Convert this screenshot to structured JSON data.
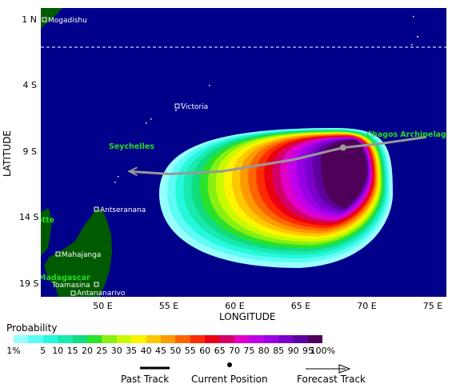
{
  "axes": {
    "lat_title": "LATITUDE",
    "lon_title": "LONGITUDE",
    "lat_ticks": [
      {
        "label": "1 N",
        "lat": 1
      },
      {
        "label": "4 S",
        "lat": -4
      },
      {
        "label": "9 S",
        "lat": -9
      },
      {
        "label": "14 S",
        "lat": -14
      },
      {
        "label": "19 S",
        "lat": -19
      }
    ],
    "lon_ticks": [
      {
        "label": "50 E",
        "lon": 50
      },
      {
        "label": "55 E",
        "lon": 55
      },
      {
        "label": "60 E",
        "lon": 60
      },
      {
        "label": "65 E",
        "lon": 65
      },
      {
        "label": "70 E",
        "lon": 70
      },
      {
        "label": "75 E",
        "lon": 75
      }
    ]
  },
  "map": {
    "ocean_color": "#00008a",
    "land_color": "#005a00",
    "equator_dashed": true,
    "places": [
      {
        "name": "Mogadishu",
        "type": "city"
      },
      {
        "name": "Victoria",
        "type": "city"
      },
      {
        "name": "Antseranana",
        "type": "city"
      },
      {
        "name": "Mahajanga",
        "type": "city"
      },
      {
        "name": "Toamasina",
        "type": "city"
      },
      {
        "name": "Antananarivo",
        "type": "city"
      },
      {
        "name": "Seychelles",
        "type": "region"
      },
      {
        "name": "Chagos Archipelago",
        "type": "region"
      },
      {
        "name": "Mayotte",
        "type": "region"
      },
      {
        "name": "Madagascar",
        "type": "region"
      }
    ]
  },
  "probability": {
    "title": "Probability",
    "bins": [
      {
        "label": "1%",
        "color": "#98ffff"
      },
      {
        "label": "5",
        "color": "#5cfcf4"
      },
      {
        "label": "10",
        "color": "#26f8dc"
      },
      {
        "label": "15",
        "color": "#18eab0"
      },
      {
        "label": "20",
        "color": "#10dc80"
      },
      {
        "label": "25",
        "color": "#2ae22a"
      },
      {
        "label": "30",
        "color": "#88f012"
      },
      {
        "label": "35",
        "color": "#cafa00"
      },
      {
        "label": "40",
        "color": "#fcf400"
      },
      {
        "label": "45",
        "color": "#fcc800"
      },
      {
        "label": "50",
        "color": "#fc9a00"
      },
      {
        "label": "55",
        "color": "#fc6600"
      },
      {
        "label": "60",
        "color": "#fc2c00"
      },
      {
        "label": "65",
        "color": "#ea0012"
      },
      {
        "label": "70",
        "color": "#d4006a"
      },
      {
        "label": "75",
        "color": "#e000c8"
      },
      {
        "label": "80",
        "color": "#c000e8"
      },
      {
        "label": "85",
        "color": "#9a00e4"
      },
      {
        "label": "90",
        "color": "#7c00cc"
      },
      {
        "label": "95",
        "color": "#5e00a0"
      },
      {
        "label": "100%",
        "color": "#4e0058"
      }
    ]
  },
  "legend": {
    "past_track": "Past Track",
    "current_position": "Current Position",
    "forecast_track": "Forecast Track"
  },
  "storm": {
    "current_position": {
      "lat": -8.7,
      "lon": 68.2
    },
    "forecast_track": [
      {
        "lat": -7.9,
        "lon": 74.5
      },
      {
        "lat": -8.4,
        "lon": 71.0
      },
      {
        "lat": -8.7,
        "lon": 68.2
      },
      {
        "lat": -9.6,
        "lon": 64.5
      },
      {
        "lat": -10.5,
        "lon": 59.0
      },
      {
        "lat": -10.7,
        "lon": 55.0
      },
      {
        "lat": -10.5,
        "lon": 52.0
      }
    ]
  }
}
